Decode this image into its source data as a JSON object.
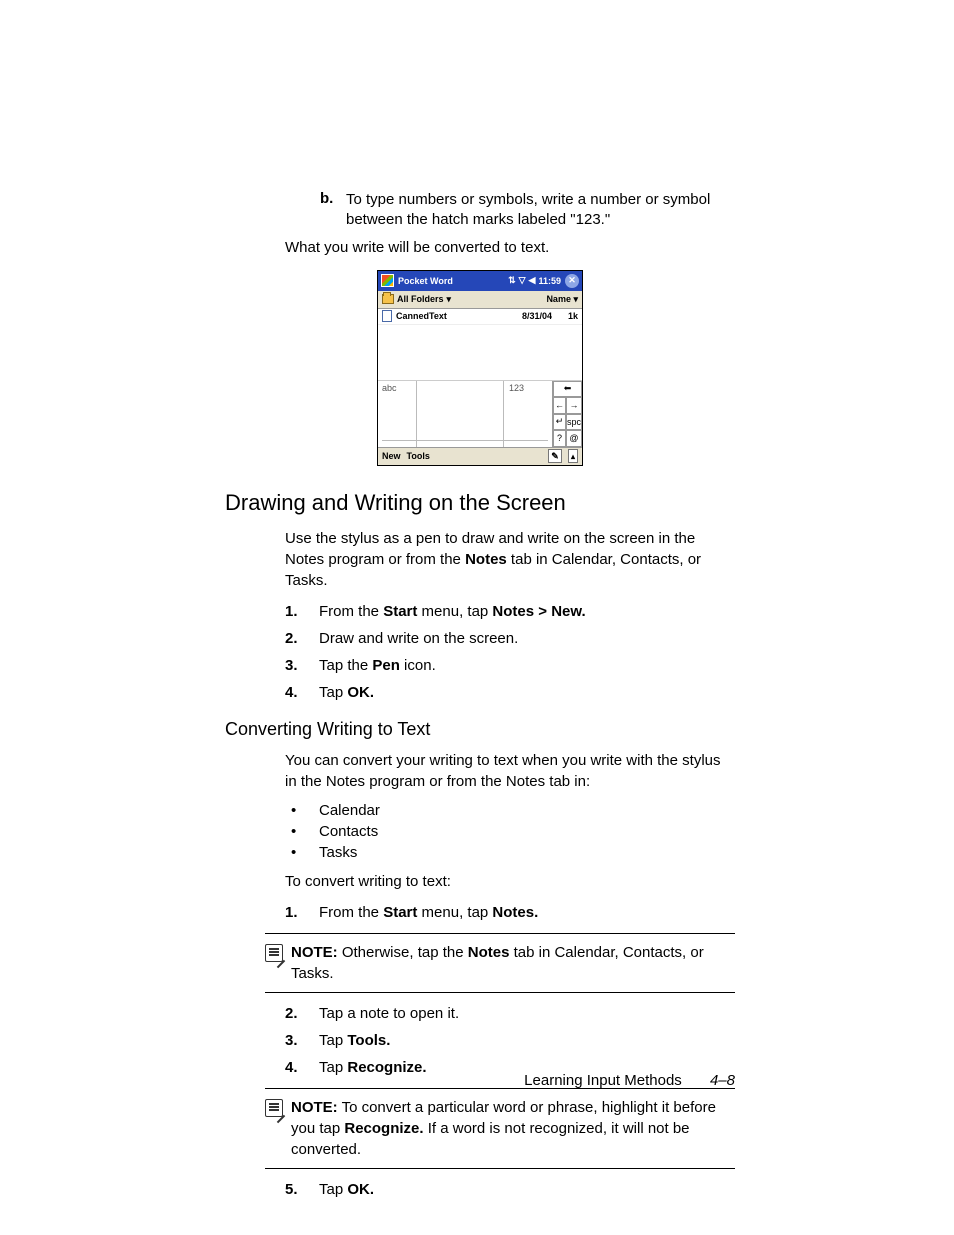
{
  "step_b": {
    "label": "b.",
    "text_pre": "To type numbers or symbols, write a number or symbol between the hatch marks labeled \"123.\""
  },
  "followup": "What you write will be converted to text.",
  "pw": {
    "title": "Pocket Word",
    "time": "11:59",
    "folders_label": "All Folders",
    "sort_label": "Name",
    "file": {
      "name": "CannedText",
      "date": "8/31/04",
      "size": "1k"
    },
    "abc": "abc",
    "n123": "123",
    "keys": {
      "bksp": "⬅",
      "left": "←",
      "right": "→",
      "ret": "↵",
      "spc": "spc",
      "q": "?",
      "at": "@"
    },
    "menu_new": "New",
    "menu_tools": "Tools"
  },
  "h2": "Drawing and Writing on the Screen",
  "p1_a": "Use the stylus as a pen to draw and write on the screen in the Notes program or from the ",
  "p1_b": "Notes",
  "p1_c": " tab in Calendar, Contacts, or Tasks.",
  "steps1": [
    {
      "n": "1.",
      "pre": "From the ",
      "b1": "Start",
      "mid": " menu, tap ",
      "b2": "Notes > New."
    },
    {
      "n": "2.",
      "pre": "Draw and write on the screen."
    },
    {
      "n": "3.",
      "pre": "Tap the ",
      "b1": "Pen",
      "mid": " icon."
    },
    {
      "n": "4.",
      "pre": "Tap ",
      "b1": "OK."
    }
  ],
  "h3": "Converting Writing to Text",
  "p2": "You can convert your writing to text when you write with the stylus in the Notes program or from the Notes tab in:",
  "bullets": [
    "Calendar",
    "Contacts",
    "Tasks"
  ],
  "p3": "To convert writing to text:",
  "steps2a": [
    {
      "n": "1.",
      "pre": "From the ",
      "b1": "Start",
      "mid": " menu, tap ",
      "b2": "Notes."
    }
  ],
  "note1": {
    "label": "NOTE:",
    "pre": " Otherwise, tap the ",
    "b": "Notes",
    "post": " tab in Calendar, Contacts, or Tasks."
  },
  "steps2b": [
    {
      "n": "2.",
      "pre": "Tap a note to open it."
    },
    {
      "n": "3.",
      "pre": "Tap ",
      "b1": "Tools."
    },
    {
      "n": "4.",
      "pre": "Tap ",
      "b1": "Recognize."
    }
  ],
  "note2": {
    "label": "NOTE:",
    "pre": " To convert a particular word or phrase, highlight it before you tap ",
    "b": "Recognize.",
    "post": " If a word is not recognized, it will not be converted."
  },
  "steps2c": [
    {
      "n": "5.",
      "pre": "Tap ",
      "b1": "OK."
    }
  ],
  "footer": {
    "section": "Learning Input Methods",
    "page": "4–8"
  }
}
